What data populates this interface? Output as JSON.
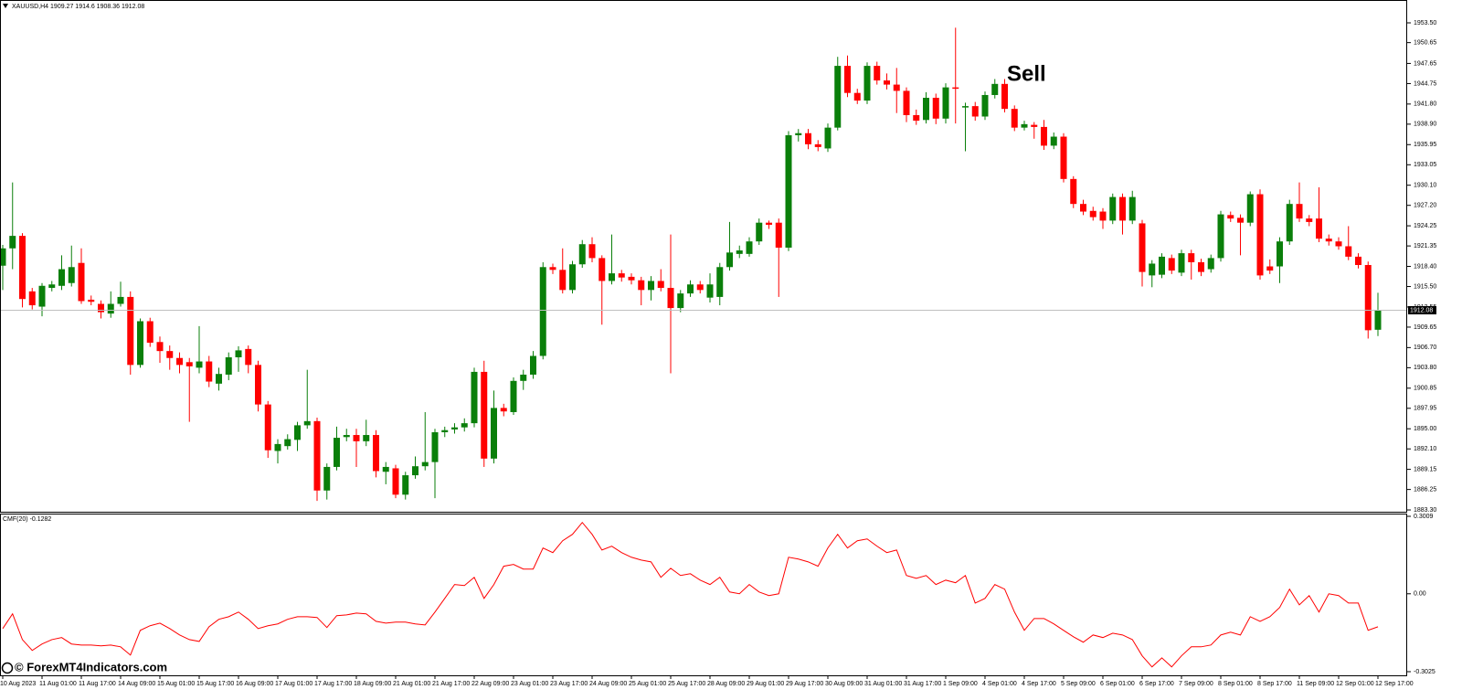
{
  "watermark": "© ForexMT4Indicators.com",
  "chart_data": [
    {
      "type": "candlestick",
      "title": "XAUUSD,H4",
      "annotation": "Sell",
      "up_color": "#0a7f0a",
      "down_color": "#ff0000",
      "price_line_color": "#c0c0c0",
      "ylim": [
        1883.04,
        1956.53
      ],
      "yticks": [
        {
          "value": 1953.5,
          "label": "1953.50"
        },
        1950.65,
        1947.65,
        1944.75,
        {
          "value": 1941.8,
          "label": "1941.80"
        },
        {
          "value": 1938.9,
          "label": "1938.90"
        },
        1935.95,
        1933.05,
        {
          "value": 1930.1,
          "label": "1930.10"
        },
        {
          "value": 1927.2,
          "label": "1927.20"
        },
        1924.25,
        1921.35,
        {
          "value": 1918.4,
          "label": "1918.40"
        },
        {
          "value": 1915.5,
          "label": "1915.50"
        },
        1912.55,
        1909.65,
        {
          "value": 1906.7,
          "label": "1906.70"
        },
        {
          "value": 1903.8,
          "label": "1903.80"
        },
        1900.85,
        1897.95,
        {
          "value": 1895.0,
          "label": "1895.00"
        },
        {
          "value": 1892.1,
          "label": "1892.10"
        },
        1889.15,
        1886.25,
        {
          "value": 1883.3,
          "label": "1883.30"
        }
      ],
      "categories": [
        "10 Aug 2023",
        null,
        null,
        null,
        "11 Aug 01:00",
        null,
        null,
        null,
        "11 Aug 17:00",
        null,
        null,
        null,
        "14 Aug 09:00",
        null,
        null,
        null,
        "15 Aug 01:00",
        null,
        null,
        null,
        "15 Aug 17:00",
        null,
        null,
        null,
        "16 Aug 09:00",
        null,
        null,
        null,
        "17 Aug 01:00",
        null,
        null,
        null,
        "17 Aug 17:00",
        null,
        null,
        null,
        "18 Aug 09:00",
        null,
        null,
        null,
        "21 Aug 01:00",
        null,
        null,
        null,
        "21 Aug 17:00",
        null,
        null,
        null,
        "22 Aug 09:00",
        null,
        null,
        null,
        "23 Aug 01:00",
        null,
        null,
        null,
        "23 Aug 17:00",
        null,
        null,
        null,
        "24 Aug 09:00",
        null,
        null,
        null,
        "25 Aug 01:00",
        null,
        null,
        null,
        "25 Aug 17:00",
        null,
        null,
        null,
        "28 Aug 09:00",
        null,
        null,
        null,
        "29 Aug 01:00",
        null,
        null,
        null,
        "29 Aug 17:00",
        null,
        null,
        null,
        "30 Aug 09:00",
        null,
        null,
        null,
        "31 Aug 01:00",
        null,
        null,
        null,
        "31 Aug 17:00",
        null,
        null,
        null,
        "1 Sep 09:00",
        null,
        null,
        null,
        "4 Sep 01:00",
        null,
        null,
        null,
        "4 Sep 17:00",
        null,
        null,
        null,
        "5 Sep 09:00",
        null,
        null,
        null,
        "6 Sep 01:00",
        null,
        null,
        null,
        "6 Sep 17:00",
        null,
        null,
        null,
        "7 Sep 09:00",
        null,
        null,
        null,
        "8 Sep 01:00",
        null,
        null,
        null,
        "8 Sep 17:00",
        null,
        null,
        null,
        "11 Sep 09:00",
        null,
        null,
        null,
        "12 Sep 01:00",
        null,
        null,
        null,
        "12 Sep 17:00"
      ],
      "open": [
        1918.5,
        1921.0,
        1922.8,
        1914.8,
        1912.6,
        1915.3,
        1915.6,
        1916.0,
        1918.9,
        1913.6,
        1913.0,
        1911.6,
        1913.0,
        1914.0,
        1904.2,
        1910.5,
        1907.5,
        1906.2,
        1905.2,
        1904.6,
        1903.8,
        1904.7,
        1901.5,
        1902.8,
        1905.3,
        1906.5,
        1904.2,
        1898.5,
        1891.8,
        1892.5,
        1893.4,
        1895.5,
        1896.1,
        1886.1,
        1889.5,
        1893.8,
        1894.1,
        1893.2,
        1894.1,
        1888.8,
        1889.3,
        1885.5,
        1888.3,
        1889.6,
        1890.2,
        1894.5,
        1894.9,
        1895.2,
        1895.8,
        1903.2,
        1890.7,
        1898.0,
        1897.4,
        1901.9,
        1902.8,
        1905.5,
        1918.3,
        1917.9,
        1915.0,
        1918.7,
        1921.6,
        1919.6,
        1916.3,
        1917.4,
        1916.9,
        1916.4,
        1915.0,
        1916.3,
        1915.3,
        1912.4,
        1914.5,
        1915.8,
        1913.9,
        1914.0,
        1918.3,
        1920.2,
        1920.2,
        1922.0,
        1924.7,
        1924.7,
        1921.1,
        1937.3,
        1937.6,
        1936.0,
        1935.4,
        1938.4,
        1947.3,
        1943.4,
        1942.3,
        1947.3,
        1945.2,
        1944.6,
        1943.7,
        1940.2,
        1939.5,
        1942.7,
        1939.7,
        1944.2,
        1941.3,
        1941.5,
        1940.0,
        1943.1,
        1944.7,
        1941.1,
        1938.4,
        1938.8,
        1938.5,
        1935.8,
        1937.1,
        1931.0,
        1927.4,
        1926.4,
        1926.3,
        1925.0,
        1928.4,
        1925.0,
        1924.6,
        1917.1,
        1917.2,
        1919.6,
        1917.5,
        1920.3,
        1919.0,
        1918.0,
        1919.6,
        1925.8,
        1925.4,
        1924.7,
        1928.8,
        1918.4,
        1918.4,
        1922.0,
        1927.4,
        1925.3,
        1925.3,
        1922.4,
        1922.0,
        1921.3,
        1919.8,
        1918.6,
        1909.27
      ],
      "high": [
        1921.5,
        1930.5,
        1923.2,
        1915.3,
        1916.0,
        1916.3,
        1920.0,
        1921.4,
        1921.0,
        1914.2,
        1913.5,
        1914.8,
        1916.2,
        1914.8,
        1910.9,
        1911.0,
        1908.3,
        1907.0,
        1906.0,
        1905.2,
        1909.8,
        1905.5,
        1903.8,
        1906.0,
        1906.9,
        1907.0,
        1904.8,
        1899.0,
        1893.5,
        1894.2,
        1896.0,
        1903.5,
        1896.6,
        1890.0,
        1895.3,
        1895.0,
        1895.0,
        1896.3,
        1894.8,
        1890.2,
        1889.8,
        1888.8,
        1891.0,
        1897.4,
        1895.0,
        1895.3,
        1895.8,
        1896.5,
        1903.8,
        1904.8,
        1900.5,
        1898.6,
        1902.4,
        1903.5,
        1906.2,
        1919.0,
        1918.8,
        1921.0,
        1919.2,
        1922.2,
        1922.6,
        1920.0,
        1923.0,
        1917.9,
        1917.4,
        1916.9,
        1917.0,
        1918.0,
        1923.0,
        1915.0,
        1916.4,
        1916.3,
        1917.4,
        1918.9,
        1924.8,
        1921.4,
        1922.6,
        1925.3,
        1925.0,
        1925.3,
        1937.9,
        1938.2,
        1938.2,
        1936.6,
        1939.0,
        1948.6,
        1948.8,
        1944.0,
        1947.8,
        1947.9,
        1946.2,
        1947.0,
        1944.2,
        1941.0,
        1943.5,
        1943.3,
        1944.8,
        1952.8,
        1942.0,
        1942.1,
        1943.6,
        1945.4,
        1945.4,
        1941.6,
        1939.4,
        1939.2,
        1939.5,
        1937.7,
        1937.6,
        1931.4,
        1928.0,
        1927.0,
        1926.8,
        1928.9,
        1928.9,
        1929.3,
        1925.1,
        1919.3,
        1920.3,
        1920.1,
        1920.8,
        1920.8,
        1919.5,
        1920.1,
        1926.4,
        1926.3,
        1925.9,
        1929.2,
        1929.5,
        1919.4,
        1922.6,
        1928.0,
        1930.5,
        1925.8,
        1929.8,
        1923.0,
        1922.6,
        1924.2,
        1920.3,
        1919.1,
        1914.6
      ],
      "low": [
        1915.0,
        1918.0,
        1912.5,
        1912.2,
        1911.2,
        1914.8,
        1915.0,
        1915.5,
        1913.0,
        1912.8,
        1910.9,
        1911.0,
        1912.6,
        1902.8,
        1903.8,
        1906.8,
        1904.5,
        1903.5,
        1903.0,
        1896.0,
        1903.0,
        1901.0,
        1900.5,
        1902.0,
        1903.2,
        1903.0,
        1897.5,
        1890.8,
        1890.0,
        1892.0,
        1891.8,
        1895.0,
        1884.6,
        1884.8,
        1889.0,
        1893.2,
        1889.5,
        1892.5,
        1888.0,
        1887.0,
        1885.0,
        1884.8,
        1887.8,
        1889.0,
        1885.0,
        1893.8,
        1894.3,
        1894.6,
        1895.2,
        1889.5,
        1890.0,
        1896.8,
        1897.0,
        1900.6,
        1902.2,
        1905.0,
        1917.3,
        1914.5,
        1914.5,
        1918.2,
        1919.0,
        1910.0,
        1915.8,
        1916.2,
        1915.8,
        1912.8,
        1913.5,
        1914.8,
        1903.0,
        1911.8,
        1914.0,
        1914.5,
        1913.2,
        1912.8,
        1917.8,
        1919.6,
        1919.8,
        1921.5,
        1923.8,
        1914.0,
        1920.6,
        1936.4,
        1935.3,
        1935.0,
        1934.9,
        1938.0,
        1942.8,
        1941.8,
        1941.8,
        1944.6,
        1943.9,
        1940.5,
        1939.2,
        1938.8,
        1939.0,
        1938.9,
        1939.0,
        1939.0,
        1935.0,
        1939.4,
        1939.5,
        1942.6,
        1940.6,
        1937.9,
        1938.0,
        1936.8,
        1935.2,
        1935.3,
        1930.5,
        1926.8,
        1925.8,
        1925.0,
        1923.8,
        1924.5,
        1923.0,
        1924.5,
        1915.5,
        1915.4,
        1916.7,
        1917.3,
        1917.0,
        1916.5,
        1917.0,
        1917.5,
        1919.1,
        1924.8,
        1920.0,
        1924.2,
        1916.5,
        1917.3,
        1916.0,
        1921.5,
        1924.8,
        1924.2,
        1921.9,
        1921.4,
        1920.8,
        1919.3,
        1918.1,
        1908.0,
        1908.36
      ],
      "close": [
        1921.0,
        1922.8,
        1913.7,
        1912.8,
        1915.6,
        1915.8,
        1918.0,
        1918.3,
        1913.4,
        1913.3,
        1911.8,
        1913.0,
        1914.0,
        1904.2,
        1910.5,
        1907.4,
        1906.2,
        1905.2,
        1904.2,
        1904.0,
        1904.7,
        1901.8,
        1902.9,
        1905.3,
        1906.3,
        1904.2,
        1898.5,
        1891.9,
        1892.8,
        1893.5,
        1895.5,
        1896.1,
        1886.1,
        1889.5,
        1893.7,
        1894.1,
        1893.2,
        1894.1,
        1888.9,
        1889.5,
        1885.5,
        1888.3,
        1889.6,
        1890.2,
        1894.5,
        1894.8,
        1895.2,
        1895.8,
        1903.2,
        1890.7,
        1898.0,
        1897.5,
        1901.9,
        1902.8,
        1905.5,
        1918.3,
        1917.9,
        1915.0,
        1918.7,
        1921.6,
        1919.6,
        1916.3,
        1917.4,
        1916.8,
        1916.4,
        1915.0,
        1916.3,
        1915.3,
        1912.4,
        1914.5,
        1915.8,
        1915.0,
        1915.8,
        1918.3,
        1920.4,
        1920.7,
        1922.0,
        1924.7,
        1924.4,
        1921.1,
        1937.3,
        1937.6,
        1936.0,
        1935.6,
        1938.4,
        1947.3,
        1943.4,
        1942.3,
        1947.3,
        1945.2,
        1944.6,
        1943.7,
        1940.2,
        1939.4,
        1942.7,
        1939.7,
        1944.2,
        1944.0,
        1941.5,
        1940.0,
        1943.1,
        1944.7,
        1941.1,
        1938.4,
        1938.9,
        1938.5,
        1935.8,
        1937.1,
        1931.0,
        1927.4,
        1926.3,
        1925.5,
        1925.0,
        1928.4,
        1925.0,
        1928.4,
        1917.6,
        1918.8,
        1919.8,
        1917.8,
        1920.3,
        1919.0,
        1917.6,
        1919.6,
        1925.9,
        1925.3,
        1924.7,
        1928.8,
        1917.1,
        1917.8,
        1922.0,
        1927.4,
        1925.3,
        1924.8,
        1922.4,
        1922.0,
        1921.3,
        1919.8,
        1918.6,
        1909.2,
        1912.08
      ]
    },
    {
      "type": "line",
      "title": "CMF(20)",
      "color": "#ff0000",
      "ylim": [
        -0.3025,
        0.3009
      ],
      "yticks": [
        0.3009,
        {
          "value": 0,
          "label": "0.00"
        },
        -0.3025
      ],
      "values": [
        -0.135,
        -0.078,
        -0.178,
        -0.22,
        -0.195,
        -0.178,
        -0.17,
        -0.195,
        -0.199,
        -0.199,
        -0.202,
        -0.199,
        -0.206,
        -0.238,
        -0.142,
        -0.124,
        -0.114,
        -0.135,
        -0.16,
        -0.178,
        -0.185,
        -0.128,
        -0.099,
        -0.089,
        -0.071,
        -0.099,
        -0.135,
        -0.124,
        -0.117,
        -0.099,
        -0.089,
        -0.089,
        -0.092,
        -0.131,
        -0.085,
        -0.082,
        -0.075,
        -0.078,
        -0.107,
        -0.114,
        -0.11,
        -0.11,
        -0.117,
        -0.121,
        -0.071,
        -0.018,
        0.036,
        0.032,
        0.064,
        -0.018,
        0.036,
        0.107,
        0.114,
        0.096,
        0.096,
        0.178,
        0.16,
        0.206,
        0.231,
        0.277,
        0.231,
        0.17,
        0.185,
        0.16,
        0.142,
        0.131,
        0.124,
        0.064,
        0.099,
        0.071,
        0.078,
        0.053,
        0.036,
        0.064,
        0.007,
        0.0,
        0.036,
        0.007,
        -0.007,
        0.0,
        0.142,
        0.135,
        0.124,
        0.107,
        0.178,
        0.231,
        0.178,
        0.206,
        0.213,
        0.185,
        0.16,
        0.17,
        0.071,
        0.06,
        0.071,
        0.036,
        0.053,
        0.043,
        0.071,
        -0.036,
        -0.018,
        0.036,
        0.018,
        -0.071,
        -0.142,
        -0.096,
        -0.096,
        -0.117,
        -0.142,
        -0.167,
        -0.188,
        -0.16,
        -0.17,
        -0.153,
        -0.16,
        -0.178,
        -0.241,
        -0.284,
        -0.249,
        -0.284,
        -0.241,
        -0.206,
        -0.206,
        -0.199,
        -0.16,
        -0.149,
        -0.16,
        -0.089,
        -0.107,
        -0.089,
        -0.053,
        0.018,
        -0.043,
        -0.007,
        -0.071,
        0.0,
        -0.007,
        -0.036,
        -0.036,
        -0.142,
        -0.1282
      ]
    }
  ]
}
